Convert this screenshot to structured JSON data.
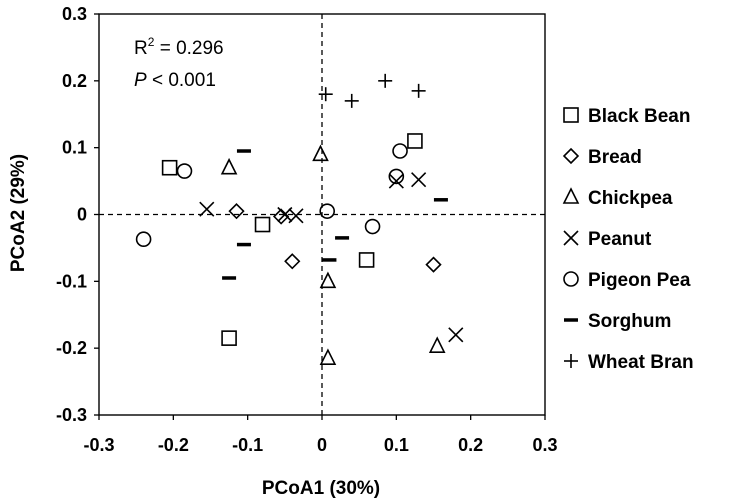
{
  "chart_data": {
    "type": "scatter",
    "xlabel": "PCoA1 (30%)",
    "ylabel": "PCoA2 (29%)",
    "xlim": [
      -0.3,
      0.3
    ],
    "ylim": [
      -0.3,
      0.3
    ],
    "x_ticks": [
      "-0.3",
      "-0.2",
      "-0.1",
      "0",
      "0.1",
      "0.2",
      "0.3"
    ],
    "y_ticks": [
      "0.3",
      "0.2",
      "0.1",
      "0",
      "-0.1",
      "-0.2",
      "-0.3"
    ],
    "reference_lines": [
      "x = 0",
      "y = 0"
    ],
    "grid": false,
    "legend_position": "right",
    "annotations": {
      "r_squared_label": "R",
      "r_squared_sup": "2",
      "r_squared_value": " = 0.296",
      "p_label": "P",
      "p_value": " < 0.001"
    },
    "series": [
      {
        "name": "Black Bean",
        "marker": "square",
        "points": [
          [
            0.125,
            0.11
          ],
          [
            -0.205,
            0.07
          ],
          [
            -0.08,
            -0.015
          ],
          [
            0.06,
            -0.068
          ],
          [
            -0.125,
            -0.185
          ]
        ]
      },
      {
        "name": "Bread",
        "marker": "diamond",
        "points": [
          [
            -0.115,
            0.005
          ],
          [
            -0.055,
            -0.003
          ],
          [
            -0.04,
            -0.07
          ],
          [
            0.15,
            -0.075
          ]
        ]
      },
      {
        "name": "Chickpea",
        "marker": "triangle",
        "points": [
          [
            -0.125,
            0.07
          ],
          [
            -0.002,
            0.09
          ],
          [
            0.008,
            -0.1
          ],
          [
            0.008,
            -0.215
          ],
          [
            0.155,
            -0.197
          ]
        ]
      },
      {
        "name": "Peanut",
        "marker": "x",
        "points": [
          [
            -0.155,
            0.008
          ],
          [
            -0.05,
            0.0
          ],
          [
            -0.035,
            -0.002
          ],
          [
            0.1,
            0.05
          ],
          [
            0.13,
            0.052
          ],
          [
            0.18,
            -0.18
          ]
        ]
      },
      {
        "name": "Pigeon Pea",
        "marker": "circle",
        "points": [
          [
            0.105,
            0.095
          ],
          [
            0.1,
            0.057
          ],
          [
            -0.185,
            0.065
          ],
          [
            -0.24,
            -0.037
          ],
          [
            0.007,
            0.005
          ],
          [
            0.068,
            -0.018
          ]
        ]
      },
      {
        "name": "Sorghum",
        "marker": "dash",
        "points": [
          [
            -0.105,
            0.095
          ],
          [
            0.16,
            0.022
          ],
          [
            -0.105,
            -0.045
          ],
          [
            0.027,
            -0.035
          ],
          [
            0.01,
            -0.068
          ],
          [
            -0.125,
            -0.095
          ]
        ]
      },
      {
        "name": "Wheat Bran",
        "marker": "plus",
        "points": [
          [
            0.005,
            0.18
          ],
          [
            0.04,
            0.17
          ],
          [
            0.085,
            0.2
          ],
          [
            0.13,
            0.185
          ]
        ]
      }
    ]
  }
}
